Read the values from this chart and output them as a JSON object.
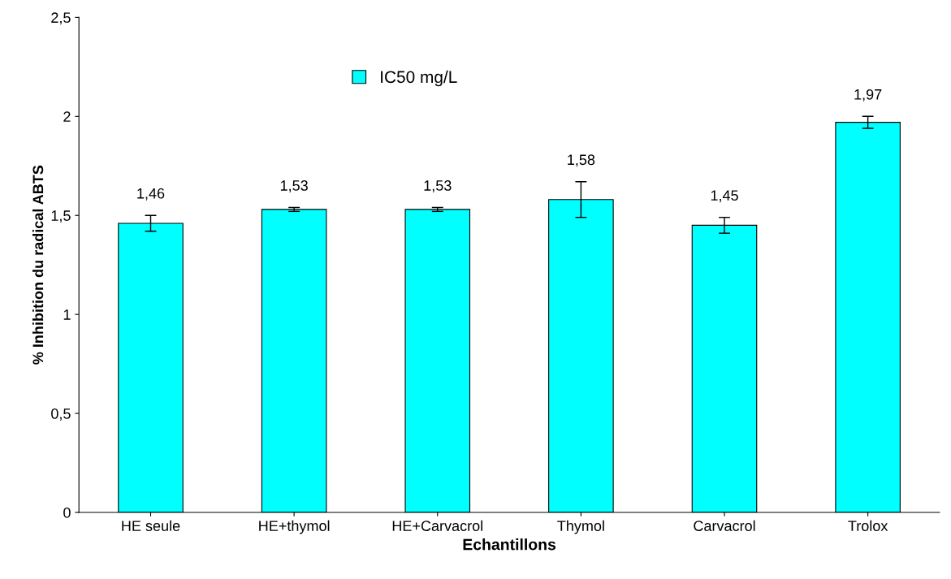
{
  "chart_data": {
    "type": "bar",
    "xlabel": "Echantillons",
    "ylabel": "% Inhibition du radical ABTS",
    "categories": [
      "HE seule",
      "HE+thymol",
      "HE+Carvacrol",
      "Thymol",
      "Carvacrol",
      "Trolox"
    ],
    "series": [
      {
        "name": "IC50 mg/L",
        "color": "#00ffff",
        "values": [
          1.46,
          1.53,
          1.53,
          1.58,
          1.45,
          1.97
        ],
        "errors": [
          0.04,
          0.01,
          0.01,
          0.09,
          0.04,
          0.03
        ],
        "value_labels": [
          "1,46",
          "1,53",
          "1,53",
          "1,58",
          "1,45",
          "1,97"
        ]
      }
    ],
    "ylim": [
      0,
      2.5
    ],
    "yticks": [
      0,
      {
        "value": 0.5,
        "label": "0,5"
      },
      1,
      {
        "value": 1.5,
        "label": "1,5"
      },
      2,
      {
        "value": 2.5,
        "label": "2,5"
      }
    ],
    "legend": "top",
    "grid": false
  }
}
